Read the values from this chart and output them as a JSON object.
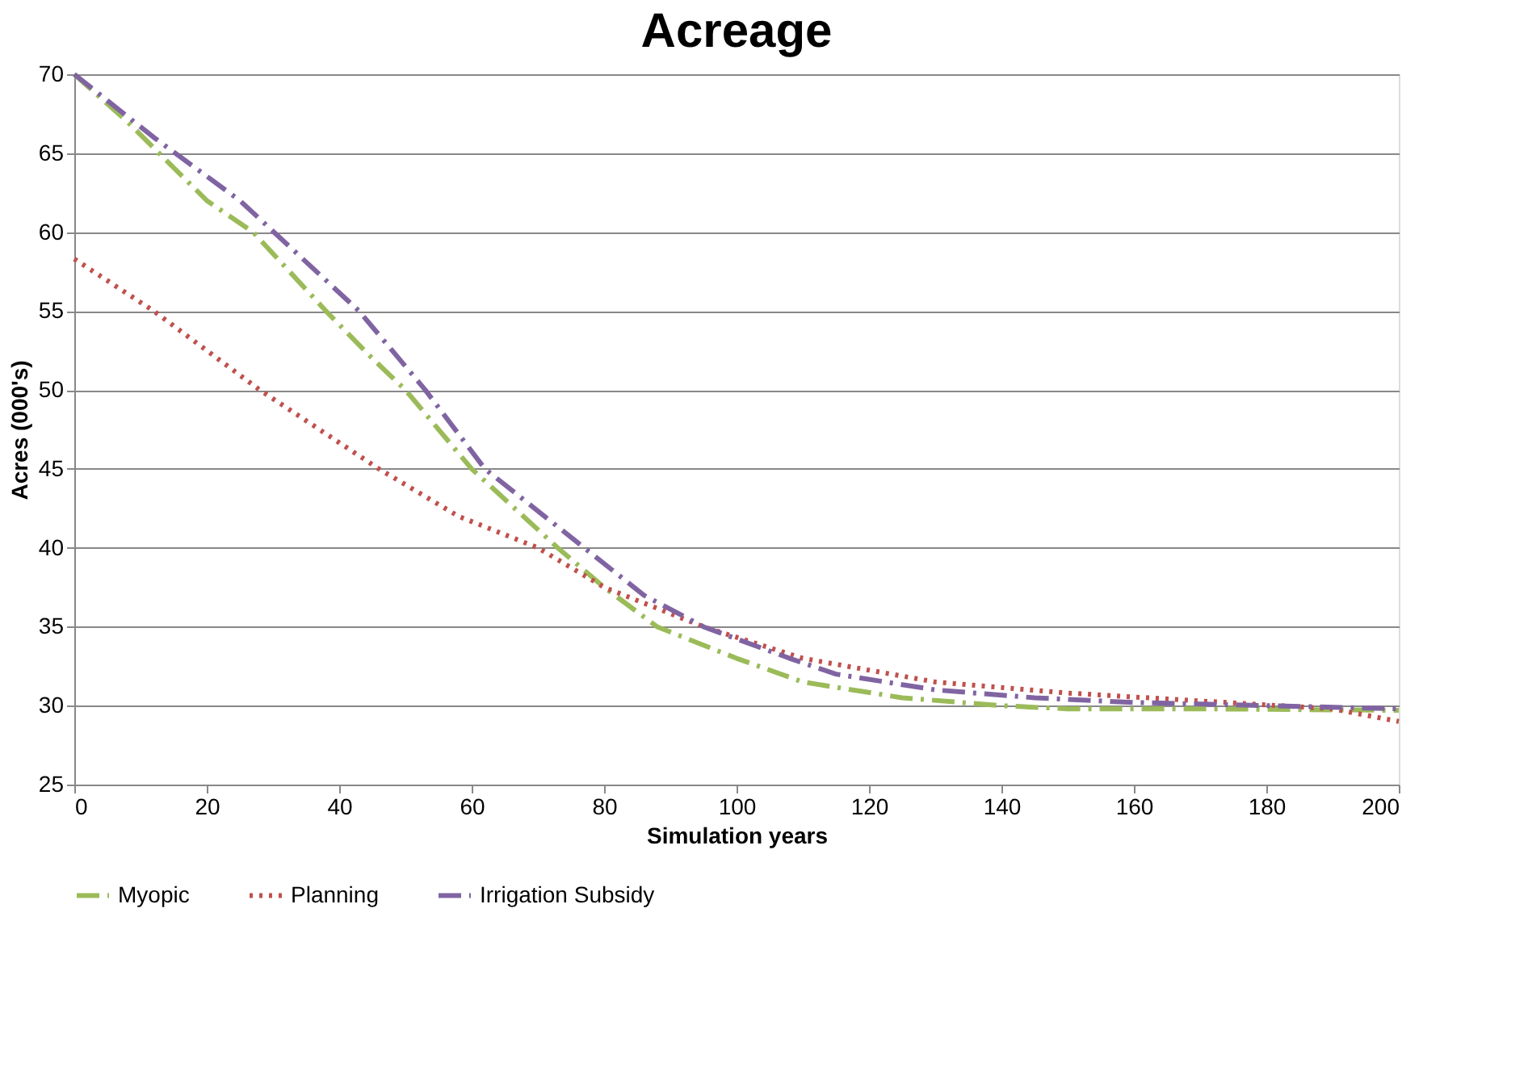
{
  "chart_data": {
    "type": "line",
    "title": "Acreage",
    "xlabel": "Simulation years",
    "ylabel": "Acres (000's)",
    "xlim": [
      0,
      200
    ],
    "xticks": [
      0,
      20,
      40,
      60,
      80,
      100,
      120,
      140,
      160,
      180,
      200
    ],
    "ylim": [
      25,
      70
    ],
    "yticks": [
      25,
      30,
      35,
      40,
      45,
      50,
      55,
      60,
      65,
      70
    ],
    "grid": "y",
    "legend": "bottom",
    "marker": "none",
    "series": [
      {
        "name": "Myopic",
        "color": "#9bbb59",
        "line_style": "dashed",
        "x": [
          0,
          8,
          20,
          27,
          38,
          45,
          50,
          60,
          73,
          80,
          88,
          100,
          110,
          125,
          140,
          150,
          170,
          200
        ],
        "values": [
          70,
          67,
          62,
          60,
          55,
          52,
          50,
          45,
          40,
          37.5,
          35,
          33,
          31.5,
          30.5,
          30,
          29.8,
          29.8,
          29.7
        ]
      },
      {
        "name": "Planning",
        "color": "#c0504d",
        "line_style": "dotted",
        "x": [
          0,
          12,
          28,
          46,
          58,
          70,
          80,
          95,
          110,
          130,
          150,
          170,
          190,
          200
        ],
        "values": [
          58.3,
          55,
          50,
          45,
          42,
          40,
          37.5,
          35,
          33,
          31.5,
          30.8,
          30.3,
          29.8,
          29
        ]
      },
      {
        "name": "Irrigation Subsidy",
        "color": "#8064a2",
        "line_style": "dashed",
        "x": [
          0,
          12,
          25,
          43,
          53,
          62,
          77,
          86,
          95,
          108,
          115,
          130,
          145,
          160,
          180,
          200
        ],
        "values": [
          70,
          66,
          62,
          55,
          50,
          45,
          40,
          37,
          35,
          33,
          32,
          31,
          30.5,
          30.2,
          30,
          29.8
        ]
      }
    ]
  }
}
